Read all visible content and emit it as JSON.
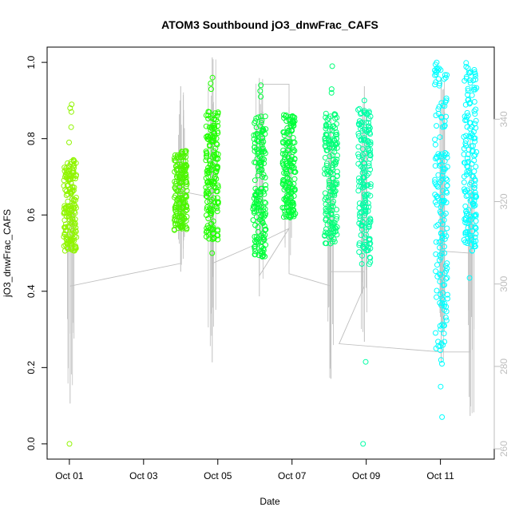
{
  "chart_data": {
    "type": "scatter",
    "title": "ATOM3 Southbound jO3_dnwFrac_CAFS",
    "xlabel": "Date",
    "ylabel": "jO3_dnwFrac_CAFS",
    "x_ticks": [
      "Oct 01",
      "Oct 03",
      "Oct 05",
      "Oct 07",
      "Oct 09",
      "Oct 11"
    ],
    "x_tick_days": [
      1,
      3,
      5,
      7,
      9,
      11
    ],
    "xlim_days": [
      0.4,
      12.45
    ],
    "ylim": [
      -0.04,
      1.04
    ],
    "y_ticks": [
      "0.0",
      "0.2",
      "0.4",
      "0.6",
      "0.8",
      "1.0"
    ],
    "y_tick_values": [
      0.0,
      0.2,
      0.4,
      0.6,
      0.8,
      1.0
    ],
    "secondary_axis": {
      "color": "#bdbdbd",
      "ylim": [
        257.5,
        357.5
      ],
      "ticks": [
        "260",
        "280",
        "300",
        "320",
        "340"
      ],
      "tick_values": [
        260,
        280,
        300,
        320,
        340
      ]
    },
    "series": [
      {
        "color": "#90f500",
        "points": [
          {
            "day": 1.02,
            "lo": 0.505,
            "hi": 0.745,
            "outliers": [
              0.0,
              0.88,
              0.89,
              0.87,
              0.83,
              0.79
            ]
          }
        ]
      },
      {
        "color": "#4cf500",
        "points": [
          {
            "day": 4.0,
            "lo": 0.56,
            "hi": 0.775,
            "outliers": []
          }
        ]
      },
      {
        "color": "#20ff00",
        "points": [
          {
            "day": 4.85,
            "lo": 0.535,
            "hi": 0.88,
            "outliers": [
              0.96,
              0.945,
              0.93,
              0.5
            ]
          }
        ]
      },
      {
        "color": "#00ff3a",
        "points": [
          {
            "day": 6.12,
            "lo": 0.49,
            "hi": 0.86,
            "outliers": [
              0.94,
              0.925,
              0.91
            ]
          },
          {
            "day": 6.92,
            "lo": 0.59,
            "hi": 0.865,
            "outliers": []
          }
        ]
      },
      {
        "color": "#00ff78",
        "points": [
          {
            "day": 8.05,
            "lo": 0.525,
            "hi": 0.87,
            "outliers": [
              0.99,
              0.93,
              0.92
            ]
          }
        ]
      },
      {
        "color": "#00ffa6",
        "points": [
          {
            "day": 8.95,
            "lo": 0.47,
            "hi": 0.88,
            "outliers": [
              0.9,
              0.215,
              0.0
            ]
          }
        ]
      },
      {
        "color": "#00ffff",
        "points": [
          {
            "day": 11.02,
            "lo": 0.24,
            "hi": 1.0,
            "outliers": [
              0.22,
              0.21,
              0.15,
              0.07
            ]
          },
          {
            "day": 11.8,
            "lo": 0.505,
            "hi": 1.0,
            "outliers": [
              0.435
            ]
          }
        ]
      }
    ],
    "line_series": {
      "color": "#bfbfbf",
      "axis": "secondary",
      "segments": [
        {
          "day": 1.02,
          "lo": 271,
          "hi": 329
        },
        {
          "day": 4.0,
          "lo": 303,
          "hi": 348
        },
        {
          "day": 4.85,
          "lo": 281,
          "hi": 355
        },
        {
          "day": 6.12,
          "lo": 297,
          "hi": 350
        },
        {
          "day": 6.92,
          "lo": 305,
          "hi": 343
        },
        {
          "day": 8.05,
          "lo": 277,
          "hi": 341
        },
        {
          "day": 8.95,
          "lo": 286,
          "hi": 348
        },
        {
          "day": 11.02,
          "lo": 281,
          "hi": 350
        },
        {
          "day": 11.8,
          "lo": 268,
          "hi": 335
        }
      ],
      "path": [
        [
          1.02,
          299.5
        ],
        [
          4.0,
          305.0
        ],
        [
          4.0,
          322.5
        ],
        [
          4.85,
          321.0
        ],
        [
          4.85,
          305.0
        ],
        [
          6.12,
          310.0
        ],
        [
          6.92,
          313.5
        ],
        [
          6.12,
          302.0
        ],
        [
          6.12,
          348.5
        ],
        [
          6.92,
          348.5
        ],
        [
          6.92,
          302.5
        ],
        [
          8.05,
          299.5
        ],
        [
          8.05,
          303.0
        ],
        [
          8.95,
          303.0
        ],
        [
          8.95,
          299.5
        ],
        [
          8.27,
          285.5
        ],
        [
          11.02,
          283.5
        ],
        [
          11.8,
          283.5
        ],
        [
          11.8,
          307.5
        ],
        [
          11.02,
          308.0
        ]
      ]
    },
    "grid": false,
    "legend": "none"
  }
}
